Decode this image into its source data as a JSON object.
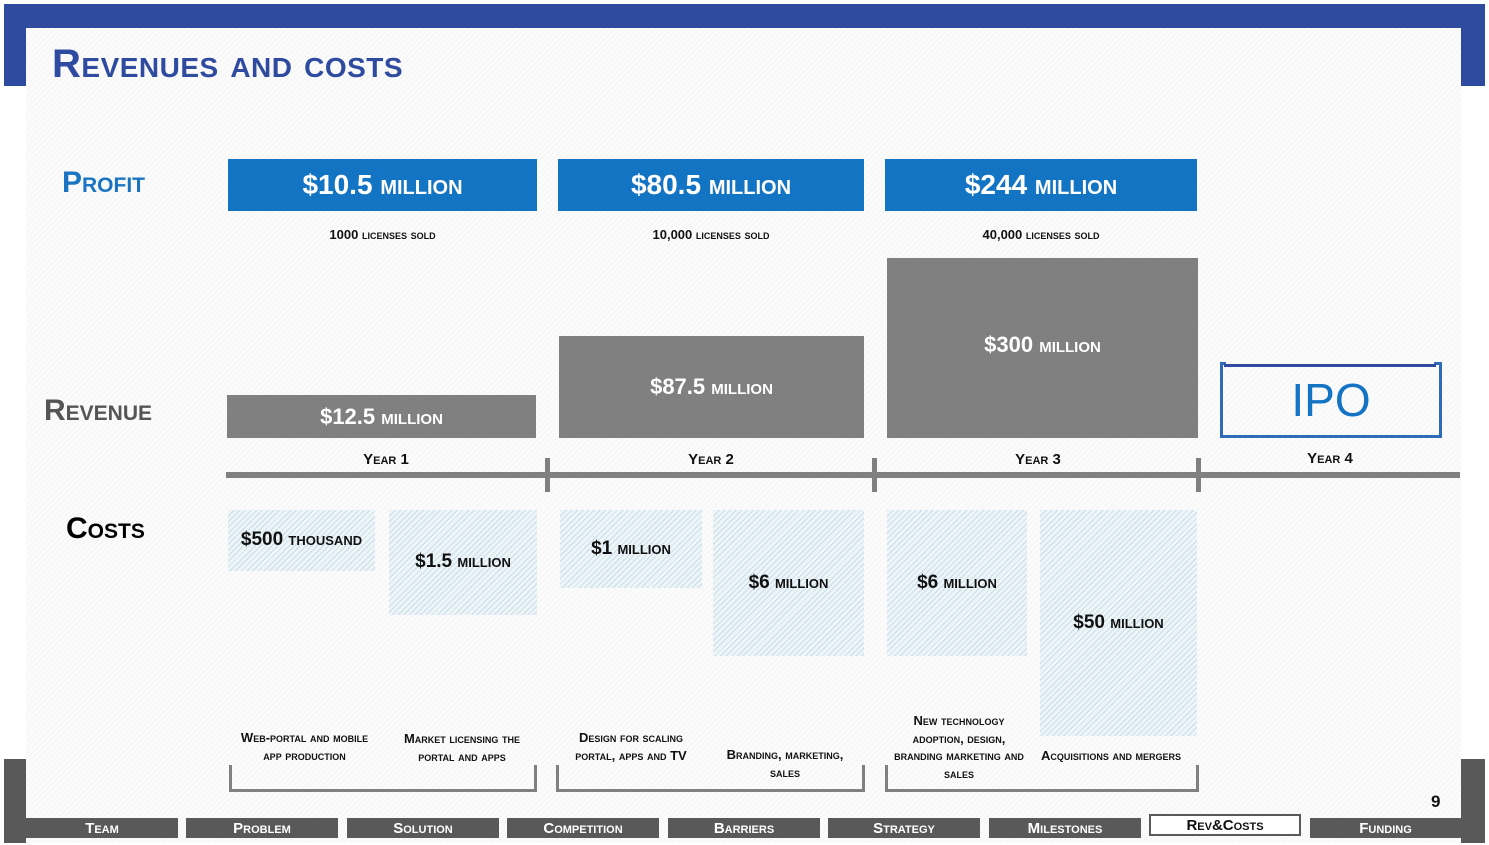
{
  "title": "Revenues and costs",
  "labels": {
    "profit": "Profit",
    "revenue": "Revenue",
    "costs": "Costs"
  },
  "profit": [
    {
      "value": "$10.5 million",
      "licenses": "1000 licenses sold"
    },
    {
      "value": "$80.5 million",
      "licenses": "10,000 licenses sold"
    },
    {
      "value": "$244 million",
      "licenses": "40,000 licenses sold"
    }
  ],
  "revenue": [
    "$12.5 million",
    "$87.5 million",
    "$300 million"
  ],
  "years": [
    "Year 1",
    "Year 2",
    "Year 3",
    "Year 4"
  ],
  "ipo": "IPO",
  "costs": [
    {
      "value": "$500 thousand",
      "desc": "Web-portal and mobile app production"
    },
    {
      "value": "$1.5 million",
      "desc": "Market licensing the portal and apps"
    },
    {
      "value": "$1 million",
      "desc": "Design for scaling portal, apps and TV"
    },
    {
      "value": "$6 million",
      "desc": "Branding, marketing, sales"
    },
    {
      "value": "$6 million",
      "desc": "New technology adoption, design, branding marketing and sales"
    },
    {
      "value": "$50 million",
      "desc": "Acquisitions and mergers"
    }
  ],
  "page_number": "9",
  "nav": [
    "Team",
    "Problem",
    "Solution",
    "Competition",
    "Barriers",
    "Strategy",
    "Milestones",
    "Rev&Costs",
    "Funding"
  ],
  "colors": {
    "brand_blue": "#2E4BA0",
    "profit_blue": "#1474C4",
    "gray": "#808080"
  }
}
